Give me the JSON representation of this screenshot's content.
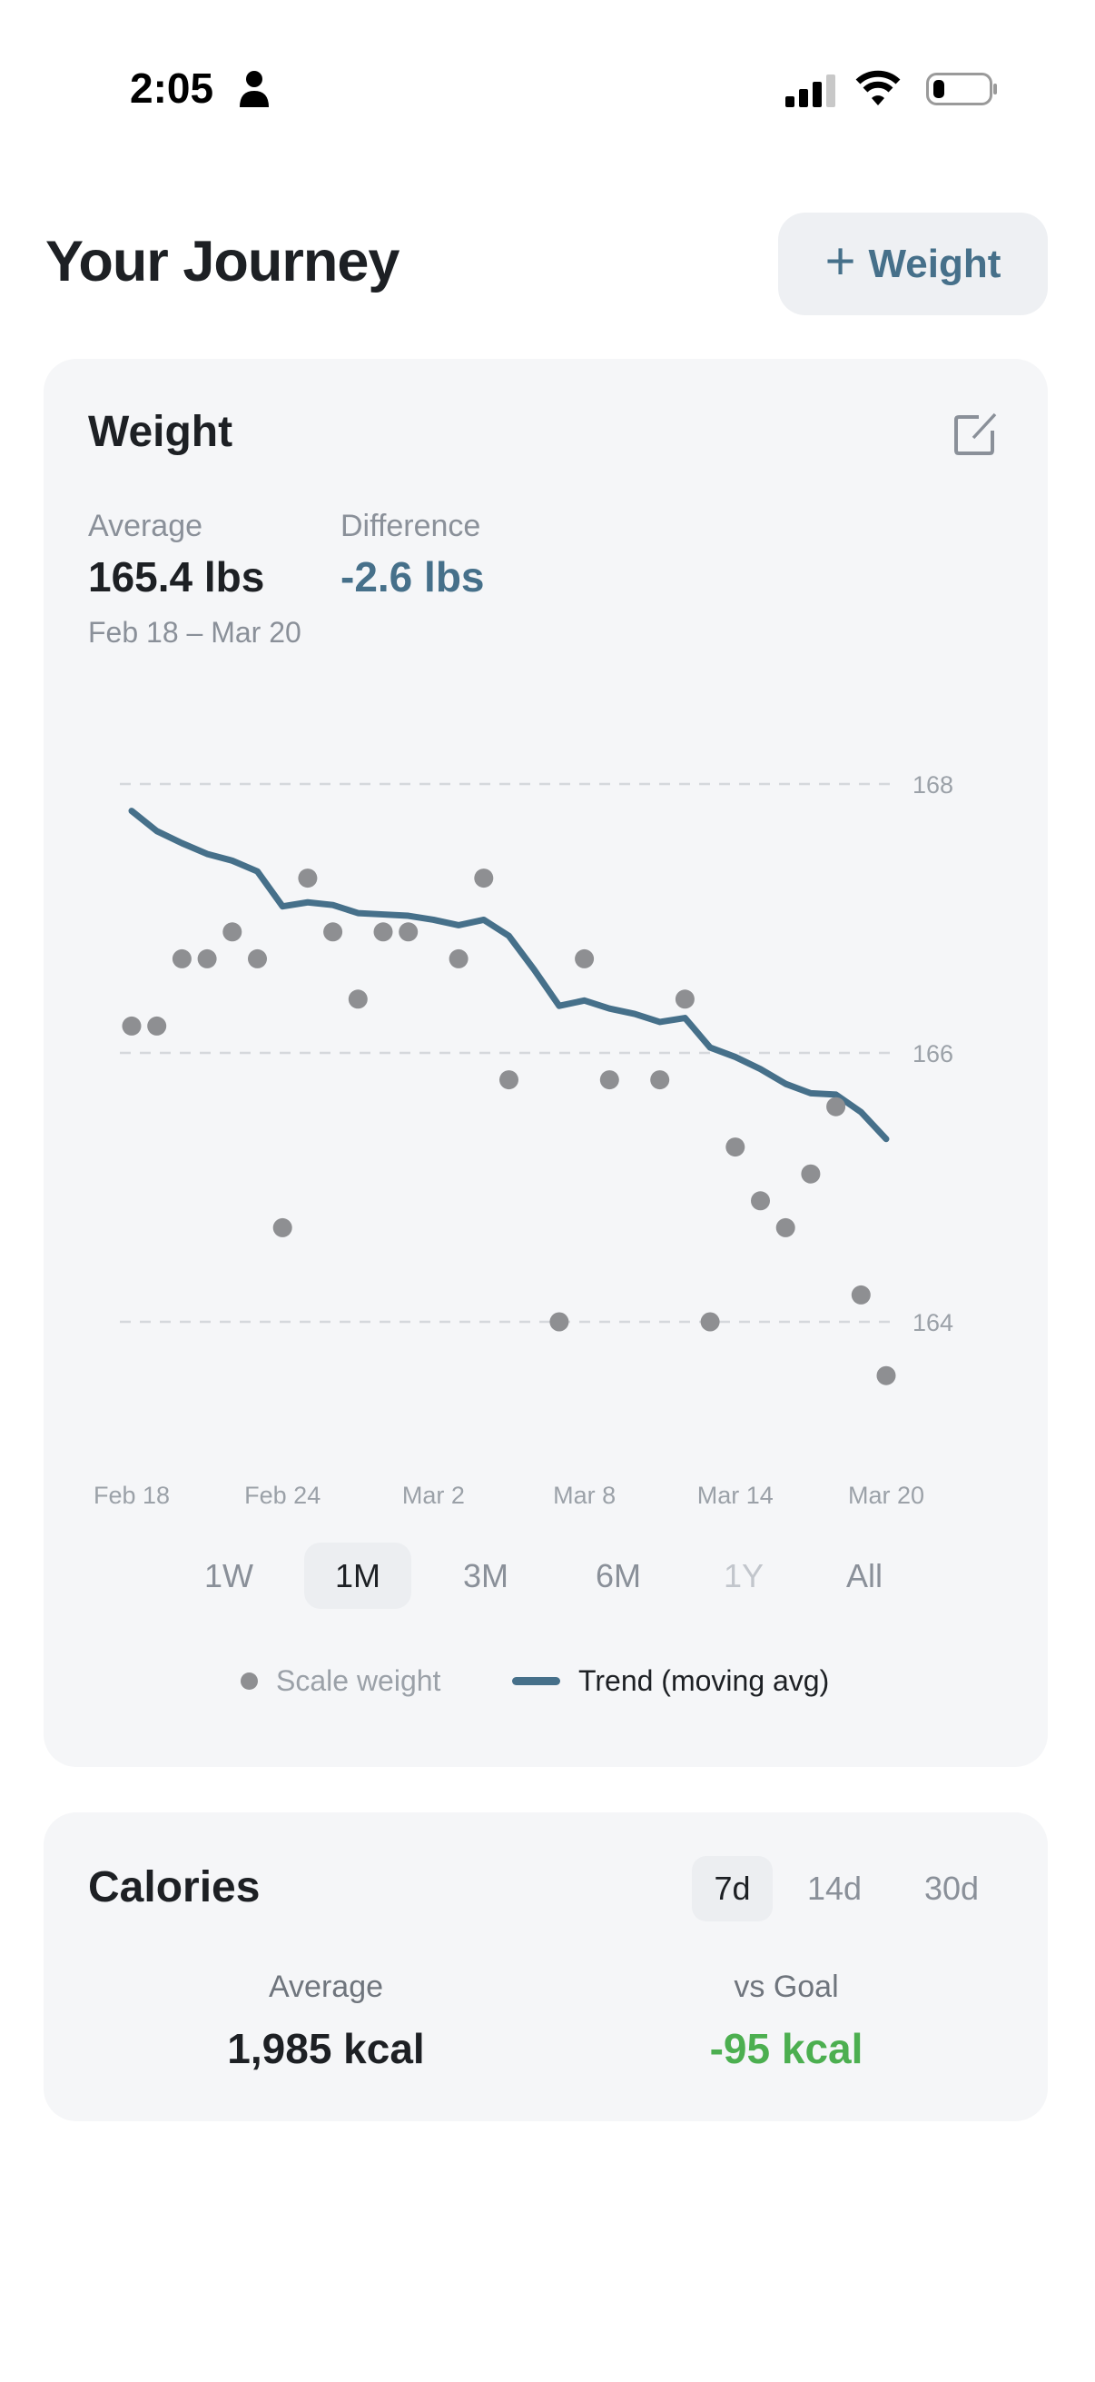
{
  "status_bar": {
    "time": "2:05",
    "icons": [
      "person-icon",
      "signal-icon",
      "wifi-icon",
      "battery-icon"
    ]
  },
  "header": {
    "title": "Your Journey",
    "add_button": {
      "icon": "plus-icon",
      "label": "Weight"
    }
  },
  "weight_card": {
    "title": "Weight",
    "edit_icon": "edit-icon",
    "average": {
      "label": "Average",
      "value": "165.4 lbs"
    },
    "difference": {
      "label": "Difference",
      "value": "-2.6 lbs"
    },
    "date_range": "Feb 18 – Mar 20",
    "ranges": [
      {
        "label": "1W",
        "state": "normal"
      },
      {
        "label": "1M",
        "state": "selected"
      },
      {
        "label": "3M",
        "state": "normal"
      },
      {
        "label": "6M",
        "state": "normal"
      },
      {
        "label": "1Y",
        "state": "disabled"
      },
      {
        "label": "All",
        "state": "normal"
      }
    ],
    "legend": {
      "scale": "Scale weight",
      "trend": "Trend (moving avg)"
    }
  },
  "calories_card": {
    "title": "Calories",
    "tabs": [
      {
        "label": "7d",
        "selected": true
      },
      {
        "label": "14d",
        "selected": false
      },
      {
        "label": "30d",
        "selected": false
      }
    ],
    "average": {
      "label": "Average",
      "value": "1,985 kcal"
    },
    "vs_goal": {
      "label": "vs Goal",
      "value": "-95 kcal"
    }
  },
  "colors": {
    "accent": "#46708a",
    "dot": "#8e8f92",
    "positive": "#4caf50",
    "text": "#1d2024",
    "muted": "#8a9099"
  },
  "chart_data": {
    "type": "scatter",
    "x_ticks": [
      "Feb 18",
      "Feb 24",
      "Mar 2",
      "Mar 8",
      "Mar 14",
      "Mar 20"
    ],
    "y_ticks": [
      164,
      166,
      168
    ],
    "ylim": [
      163.3,
      168.3
    ],
    "grid": "horizontal dashed",
    "legend": "bottom",
    "series": [
      {
        "name": "Scale weight",
        "type": "scatter",
        "points": [
          [
            "Feb 18",
            166.2
          ],
          [
            "Feb 19",
            166.2
          ],
          [
            "Feb 20",
            166.7
          ],
          [
            "Feb 21",
            166.7
          ],
          [
            "Feb 22",
            166.9
          ],
          [
            "Feb 23",
            166.7
          ],
          [
            "Feb 24",
            164.7
          ],
          [
            "Feb 25",
            167.3
          ],
          [
            "Feb 26",
            166.9
          ],
          [
            "Feb 27",
            166.4
          ],
          [
            "Feb 28",
            166.9
          ],
          [
            "Mar 1",
            166.9
          ],
          [
            "Mar 3",
            166.7
          ],
          [
            "Mar 4",
            167.3
          ],
          [
            "Mar 5",
            165.8
          ],
          [
            "Mar 7",
            164.0
          ],
          [
            "Mar 8",
            166.7
          ],
          [
            "Mar 9",
            165.8
          ],
          [
            "Mar 11",
            165.8
          ],
          [
            "Mar 12",
            166.4
          ],
          [
            "Mar 13",
            164.0
          ],
          [
            "Mar 14",
            165.3
          ],
          [
            "Mar 15",
            164.9
          ],
          [
            "Mar 16",
            164.7
          ],
          [
            "Mar 17",
            165.1
          ],
          [
            "Mar 18",
            165.6
          ],
          [
            "Mar 19",
            164.2
          ],
          [
            "Mar 20",
            163.6
          ]
        ]
      },
      {
        "name": "Trend (moving avg)",
        "type": "line",
        "points": [
          [
            "Feb 18",
            167.8
          ],
          [
            "Feb 19",
            167.65
          ],
          [
            "Feb 20",
            167.56
          ],
          [
            "Feb 21",
            167.48
          ],
          [
            "Feb 22",
            167.43
          ],
          [
            "Feb 23",
            167.35
          ],
          [
            "Feb 24",
            167.09
          ],
          [
            "Feb 25",
            167.12
          ],
          [
            "Feb 26",
            167.1
          ],
          [
            "Feb 27",
            167.04
          ],
          [
            "Feb 28",
            167.03
          ],
          [
            "Mar 1",
            167.02
          ],
          [
            "Mar 2",
            166.99
          ],
          [
            "Mar 3",
            166.95
          ],
          [
            "Mar 4",
            166.99
          ],
          [
            "Mar 5",
            166.87
          ],
          [
            "Mar 6",
            166.62
          ],
          [
            "Mar 7",
            166.35
          ],
          [
            "Mar 8",
            166.39
          ],
          [
            "Mar 9",
            166.33
          ],
          [
            "Mar 10",
            166.29
          ],
          [
            "Mar 11",
            166.23
          ],
          [
            "Mar 12",
            166.26
          ],
          [
            "Mar 13",
            166.04
          ],
          [
            "Mar 14",
            165.97
          ],
          [
            "Mar 15",
            165.88
          ],
          [
            "Mar 16",
            165.77
          ],
          [
            "Mar 17",
            165.7
          ],
          [
            "Mar 18",
            165.69
          ],
          [
            "Mar 19",
            165.56
          ],
          [
            "Mar 20",
            165.36
          ]
        ]
      }
    ]
  }
}
